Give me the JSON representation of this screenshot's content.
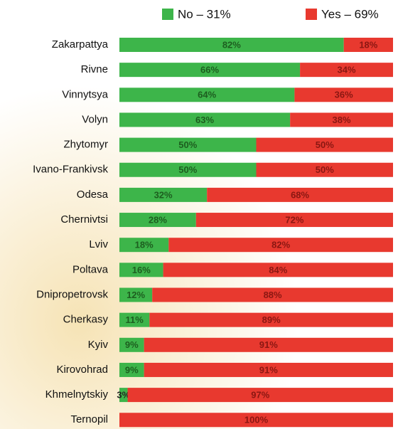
{
  "chart_data": {
    "type": "stacked-bar-horizontal",
    "categories": [
      "Zakarpattya",
      "Rivne",
      "Vinnytsya",
      "Volyn",
      "Zhytomyr",
      "Ivano-Frankivsk",
      "Odesa",
      "Chernivtsi",
      "Lviv",
      "Poltava",
      "Dnipropetrovsk",
      "Cherkasy",
      "Kyiv",
      "Kirovohrad",
      "Khmelnytskiy",
      "Ternopil"
    ],
    "series": [
      {
        "name": "No – 31%",
        "color": "#3db54a",
        "values": [
          82,
          66,
          64,
          63,
          50,
          50,
          32,
          28,
          18,
          16,
          12,
          11,
          9,
          9,
          3,
          0
        ],
        "value_labels": [
          "82%",
          "66%",
          "64%",
          "63%",
          "50%",
          "50%",
          "32%",
          "28%",
          "18%",
          "16%",
          "12%",
          "11%",
          "9%",
          "9%",
          "3%",
          null
        ]
      },
      {
        "name": "Yes – 69%",
        "color": "#e8392f",
        "values": [
          18,
          34,
          36,
          38,
          50,
          50,
          68,
          72,
          82,
          84,
          88,
          89,
          91,
          91,
          97,
          100
        ],
        "value_labels": [
          "18%",
          "34%",
          "36%",
          "38%",
          "50%",
          "50%",
          "68%",
          "72%",
          "82%",
          "84%",
          "88%",
          "89%",
          "91%",
          "91%",
          "97%",
          "100%"
        ]
      }
    ]
  }
}
